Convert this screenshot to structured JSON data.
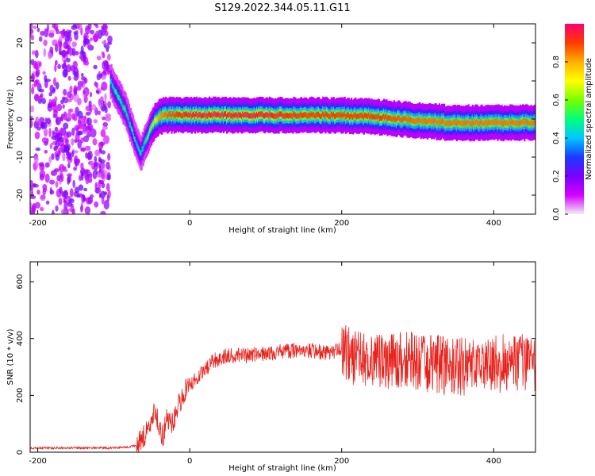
{
  "figure": {
    "title": "S129.2022.344.05.11.G11"
  },
  "chart_data": [
    {
      "type": "heatmap",
      "title": "S129.2022.344.05.11.G11",
      "xlabel": "Height of straight line (km)",
      "ylabel": "Frequency (Hz)",
      "xlim": [
        -210,
        455
      ],
      "ylim": [
        -25,
        25
      ],
      "x_ticks": [
        -200,
        0,
        200,
        400
      ],
      "y_ticks": [
        -20,
        -10,
        0,
        10,
        20
      ],
      "grid": false,
      "colorbar": {
        "label": "Normalized spectral amplitude",
        "range": [
          0,
          1
        ],
        "ticks": [
          0.0,
          0.2,
          0.4,
          0.6,
          0.8
        ],
        "tick_labels": [
          "0.0",
          "0.2",
          "0.4",
          "0.6",
          "0.8"
        ],
        "colormap": [
          "#f0f0f0",
          "#d400ff",
          "#7a00ff",
          "#1a3bff",
          "#00c8ff",
          "#00ff7a",
          "#7aff00",
          "#ffff00",
          "#ffb000",
          "#ff3a00",
          "#ff0070"
        ]
      },
      "noise_region": {
        "x": [
          -210,
          -105
        ],
        "description": "broadband low-amplitude noise"
      },
      "ridge": {
        "x": [
          -105,
          -95,
          -85,
          -75,
          -65,
          -55,
          -45,
          -35,
          -20,
          0,
          50,
          100,
          150,
          200,
          250,
          300,
          350,
          400,
          455
        ],
        "frequency": [
          10,
          6,
          2,
          -4,
          -9,
          -4,
          0,
          1,
          1,
          1,
          1,
          1,
          1,
          1,
          0.5,
          -0.5,
          -1,
          -1,
          -1
        ],
        "peak_amplitude": [
          0.45,
          0.5,
          0.5,
          0.45,
          0.45,
          0.55,
          0.75,
          0.85,
          0.9,
          0.95,
          0.95,
          0.95,
          0.9,
          0.9,
          0.9,
          0.85,
          0.85,
          0.85,
          0.85
        ]
      }
    },
    {
      "type": "line",
      "xlabel": "Height of straight line (km)",
      "ylabel": "SNR (10 * v/v)",
      "xlim": [
        -210,
        455
      ],
      "ylim": [
        0,
        670
      ],
      "x_ticks": [
        -200,
        0,
        200,
        400
      ],
      "y_ticks": [
        0,
        200,
        400,
        600
      ],
      "grid": false,
      "line_color": "#e8231d",
      "series": [
        {
          "x": [
            -210,
            -150,
            -100,
            -80,
            -70,
            -60,
            -50,
            -45,
            -40,
            -35,
            -30,
            -25,
            -20,
            -10,
            0,
            10,
            20,
            30,
            50,
            80,
            100,
            130,
            150,
            180,
            200,
            220,
            250,
            300,
            350,
            400,
            455
          ],
          "values": [
            15,
            15,
            15,
            18,
            25,
            60,
            110,
            150,
            90,
            50,
            130,
            100,
            120,
            200,
            240,
            260,
            290,
            320,
            340,
            340,
            350,
            355,
            360,
            350,
            360,
            330,
            320,
            320,
            300,
            310,
            320
          ]
        }
      ]
    }
  ]
}
